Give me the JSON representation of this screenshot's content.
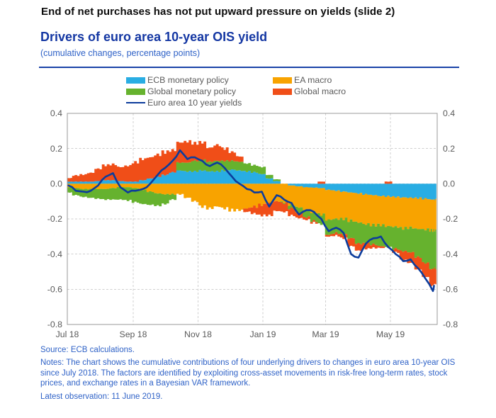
{
  "page": {
    "title": "End of net purchases has not put upward pressure on yields (slide 2)"
  },
  "chart": {
    "title": "Drivers of euro area 10-year OIS yield",
    "subtitle": "(cumulative changes, percentage points)",
    "accent_color": "#1a43a8",
    "axis_text_color": "#595959",
    "grid_color": "#cfcfcf",
    "border_color": "#9a9a9a"
  },
  "chart_data": {
    "type": "bar",
    "stacked": true,
    "grid": true,
    "legend_position": "top",
    "ylim": [
      -0.8,
      0.4
    ],
    "y_tick_values": [
      0.4,
      0.2,
      0.0,
      -0.2,
      -0.4,
      -0.6,
      -0.8
    ],
    "y_ticks": [
      "0.4",
      "0.2",
      "0.0",
      "-0.2",
      "-0.4",
      "-0.6",
      "-0.8"
    ],
    "x_range": [
      "2018-07-01",
      "2019-06-14"
    ],
    "x_ticks": [
      {
        "label": "Jul 18",
        "date": "2018-07-01"
      },
      {
        "label": "Sep 18",
        "date": "2018-09-01"
      },
      {
        "label": "Nov 18",
        "date": "2018-11-01"
      },
      {
        "label": "Jan 19",
        "date": "2019-01-01"
      },
      {
        "label": "Mar 19",
        "date": "2019-03-01"
      },
      {
        "label": "May 19",
        "date": "2019-05-01"
      }
    ],
    "x": [
      "2018-07-02",
      "2018-07-09",
      "2018-07-16",
      "2018-07-23",
      "2018-07-30",
      "2018-08-06",
      "2018-08-13",
      "2018-08-20",
      "2018-08-27",
      "2018-09-03",
      "2018-09-10",
      "2018-09-17",
      "2018-09-24",
      "2018-10-01",
      "2018-10-08",
      "2018-10-15",
      "2018-10-22",
      "2018-10-29",
      "2018-11-05",
      "2018-11-12",
      "2018-11-19",
      "2018-11-26",
      "2018-12-03",
      "2018-12-10",
      "2018-12-17",
      "2018-12-24",
      "2018-12-31",
      "2019-01-07",
      "2019-01-14",
      "2019-01-21",
      "2019-01-28",
      "2019-02-04",
      "2019-02-11",
      "2019-02-18",
      "2019-02-25",
      "2019-03-04",
      "2019-03-11",
      "2019-03-18",
      "2019-03-25",
      "2019-04-01",
      "2019-04-08",
      "2019-04-15",
      "2019-04-22",
      "2019-04-29",
      "2019-05-06",
      "2019-05-13",
      "2019-05-20",
      "2019-05-27",
      "2019-06-03",
      "2019-06-10",
      "2019-06-11"
    ],
    "series": [
      {
        "name": "ECB monetary policy",
        "type": "bar",
        "color": "#29ade3",
        "values": [
          0.012,
          0.012,
          0.012,
          0.012,
          0.015,
          0.02,
          0.02,
          0.015,
          0.012,
          0.012,
          0.02,
          0.03,
          0.04,
          0.05,
          0.065,
          0.075,
          0.07,
          0.07,
          0.075,
          0.07,
          0.07,
          0.075,
          0.08,
          0.075,
          0.07,
          0.065,
          0.055,
          0.03,
          0.015,
          0.0,
          -0.01,
          -0.015,
          -0.02,
          -0.022,
          -0.025,
          -0.035,
          -0.04,
          -0.045,
          -0.05,
          -0.055,
          -0.06,
          -0.065,
          -0.07,
          -0.072,
          -0.075,
          -0.078,
          -0.08,
          -0.082,
          -0.085,
          -0.09,
          -0.09
        ]
      },
      {
        "name": "EA macro",
        "type": "bar",
        "color": "#f8a300",
        "values": [
          -0.02,
          -0.025,
          -0.03,
          -0.03,
          -0.03,
          -0.03,
          -0.025,
          -0.02,
          -0.02,
          -0.025,
          -0.035,
          -0.045,
          -0.055,
          -0.06,
          -0.06,
          -0.06,
          -0.08,
          -0.1,
          -0.13,
          -0.14,
          -0.13,
          -0.14,
          -0.15,
          -0.15,
          -0.14,
          -0.13,
          -0.12,
          -0.11,
          -0.1,
          -0.105,
          -0.11,
          -0.12,
          -0.13,
          -0.14,
          -0.15,
          -0.17,
          -0.16,
          -0.155,
          -0.16,
          -0.165,
          -0.17,
          -0.17,
          -0.165,
          -0.17,
          -0.17,
          -0.175,
          -0.17,
          -0.175,
          -0.175,
          -0.175,
          -0.175
        ]
      },
      {
        "name": "Global monetary policy",
        "type": "bar",
        "color": "#66b22e",
        "values": [
          -0.03,
          -0.04,
          -0.045,
          -0.05,
          -0.055,
          -0.06,
          -0.065,
          -0.07,
          -0.075,
          -0.08,
          -0.08,
          -0.075,
          -0.07,
          -0.055,
          -0.03,
          0.045,
          0.05,
          0.06,
          0.06,
          0.055,
          0.06,
          0.055,
          0.05,
          0.05,
          0.045,
          0.04,
          0.04,
          0.02,
          0.01,
          -0.005,
          -0.02,
          -0.03,
          -0.04,
          -0.05,
          -0.055,
          -0.085,
          -0.08,
          -0.09,
          -0.1,
          -0.12,
          -0.11,
          -0.11,
          -0.12,
          -0.12,
          -0.125,
          -0.13,
          -0.14,
          -0.16,
          -0.19,
          -0.22,
          -0.215
        ]
      },
      {
        "name": "Global macro",
        "type": "bar",
        "color": "#f04e18",
        "values": [
          0.02,
          0.035,
          0.04,
          0.05,
          0.07,
          0.085,
          0.09,
          0.08,
          0.09,
          0.11,
          0.12,
          0.12,
          0.125,
          0.13,
          0.125,
          0.115,
          0.12,
          0.1,
          0.1,
          0.08,
          0.09,
          0.07,
          0.05,
          0.03,
          -0.02,
          -0.04,
          -0.06,
          -0.07,
          -0.055,
          -0.05,
          -0.04,
          -0.03,
          -0.015,
          -0.01,
          0.012,
          -0.01,
          -0.015,
          -0.02,
          -0.045,
          -0.04,
          -0.03,
          -0.02,
          -0.01,
          0.012,
          -0.02,
          -0.05,
          -0.06,
          -0.07,
          -0.08,
          -0.095,
          -0.09
        ]
      },
      {
        "name": "Euro area 10 year yields",
        "type": "line",
        "color": "#0c3c9c",
        "values": [
          -0.01,
          -0.04,
          -0.045,
          -0.04,
          -0.01,
          0.04,
          0.06,
          -0.02,
          -0.05,
          -0.04,
          -0.03,
          0.0,
          0.05,
          0.09,
          0.13,
          0.19,
          0.14,
          0.15,
          0.13,
          0.1,
          0.12,
          0.09,
          0.04,
          0.0,
          -0.03,
          -0.05,
          -0.045,
          -0.13,
          -0.065,
          -0.09,
          -0.11,
          -0.175,
          -0.15,
          -0.16,
          -0.2,
          -0.27,
          -0.25,
          -0.28,
          -0.4,
          -0.42,
          -0.34,
          -0.31,
          -0.3,
          -0.36,
          -0.4,
          -0.44,
          -0.43,
          -0.48,
          -0.54,
          -0.61,
          -0.58
        ]
      }
    ]
  },
  "footer": {
    "source": "Source: ECB calculations.",
    "notes": "Notes: The chart shows the cumulative contributions of four underlying drivers to changes in euro area 10-year OIS since July 2018. The factors are identified by exploiting cross-asset movements in risk-free long-term rates, stock prices, and exchange rates in a Bayesian VAR framework.",
    "latest": "Latest observation: 11 June 2019."
  }
}
